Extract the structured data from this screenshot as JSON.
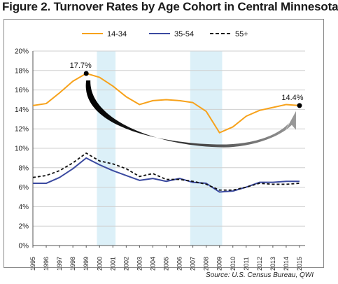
{
  "figure_title": "Figure 2. Turnover Rates by Age Cohort in Central Minnesota",
  "source_note": "Source: U.S. Census Bureau, QWI",
  "colors": {
    "series_14_34": "#f7a21b",
    "series_35_54": "#3b4aa0",
    "series_55_plus": "#111111",
    "recession_band": "#dcf0f8",
    "gridline": "#cfcfcf",
    "arrow_dark": "#000000",
    "arrow_light": "#9a9a9a"
  },
  "chart_data": {
    "type": "line",
    "x": [
      "1995",
      "1996",
      "1997",
      "1998",
      "1999",
      "2000",
      "2001",
      "2002",
      "2003",
      "2004",
      "2005",
      "2006",
      "2007",
      "2008",
      "2009",
      "2010",
      "2011",
      "2012",
      "2013",
      "2014",
      "2015"
    ],
    "ylim": [
      0,
      20
    ],
    "yticks": [
      "0%",
      "2%",
      "4%",
      "6%",
      "8%",
      "10%",
      "12%",
      "14%",
      "16%",
      "18%",
      "20%"
    ],
    "grid": true,
    "legend_position": "top",
    "shaded_periods": [
      [
        "1999.8",
        "2001.2"
      ],
      [
        "2006.8",
        "2009.2"
      ]
    ],
    "series": [
      {
        "name": "14-34",
        "style": "solid",
        "values": [
          14.4,
          14.6,
          15.7,
          16.9,
          17.7,
          17.3,
          16.4,
          15.3,
          14.5,
          14.9,
          15.0,
          14.9,
          14.7,
          13.8,
          11.6,
          12.2,
          13.3,
          13.9,
          14.2,
          14.5,
          14.4
        ]
      },
      {
        "name": "35-54",
        "style": "solid",
        "values": [
          6.4,
          6.4,
          7.0,
          7.9,
          9.0,
          8.3,
          7.7,
          7.2,
          6.7,
          6.9,
          6.6,
          6.9,
          6.5,
          6.4,
          5.5,
          5.6,
          6.0,
          6.5,
          6.5,
          6.6,
          6.6
        ]
      },
      {
        "name": "55+",
        "style": "dashed",
        "values": [
          7.0,
          7.2,
          7.7,
          8.5,
          9.5,
          8.7,
          8.4,
          7.9,
          7.1,
          7.4,
          6.8,
          6.8,
          6.6,
          6.3,
          5.7,
          5.7,
          6.0,
          6.4,
          6.3,
          6.3,
          6.4
        ]
      }
    ],
    "annotations": [
      {
        "label": "17.7%",
        "x": "1999",
        "y": 17.7
      },
      {
        "label": "14.4%",
        "x": "2015",
        "y": 14.4
      }
    ]
  }
}
